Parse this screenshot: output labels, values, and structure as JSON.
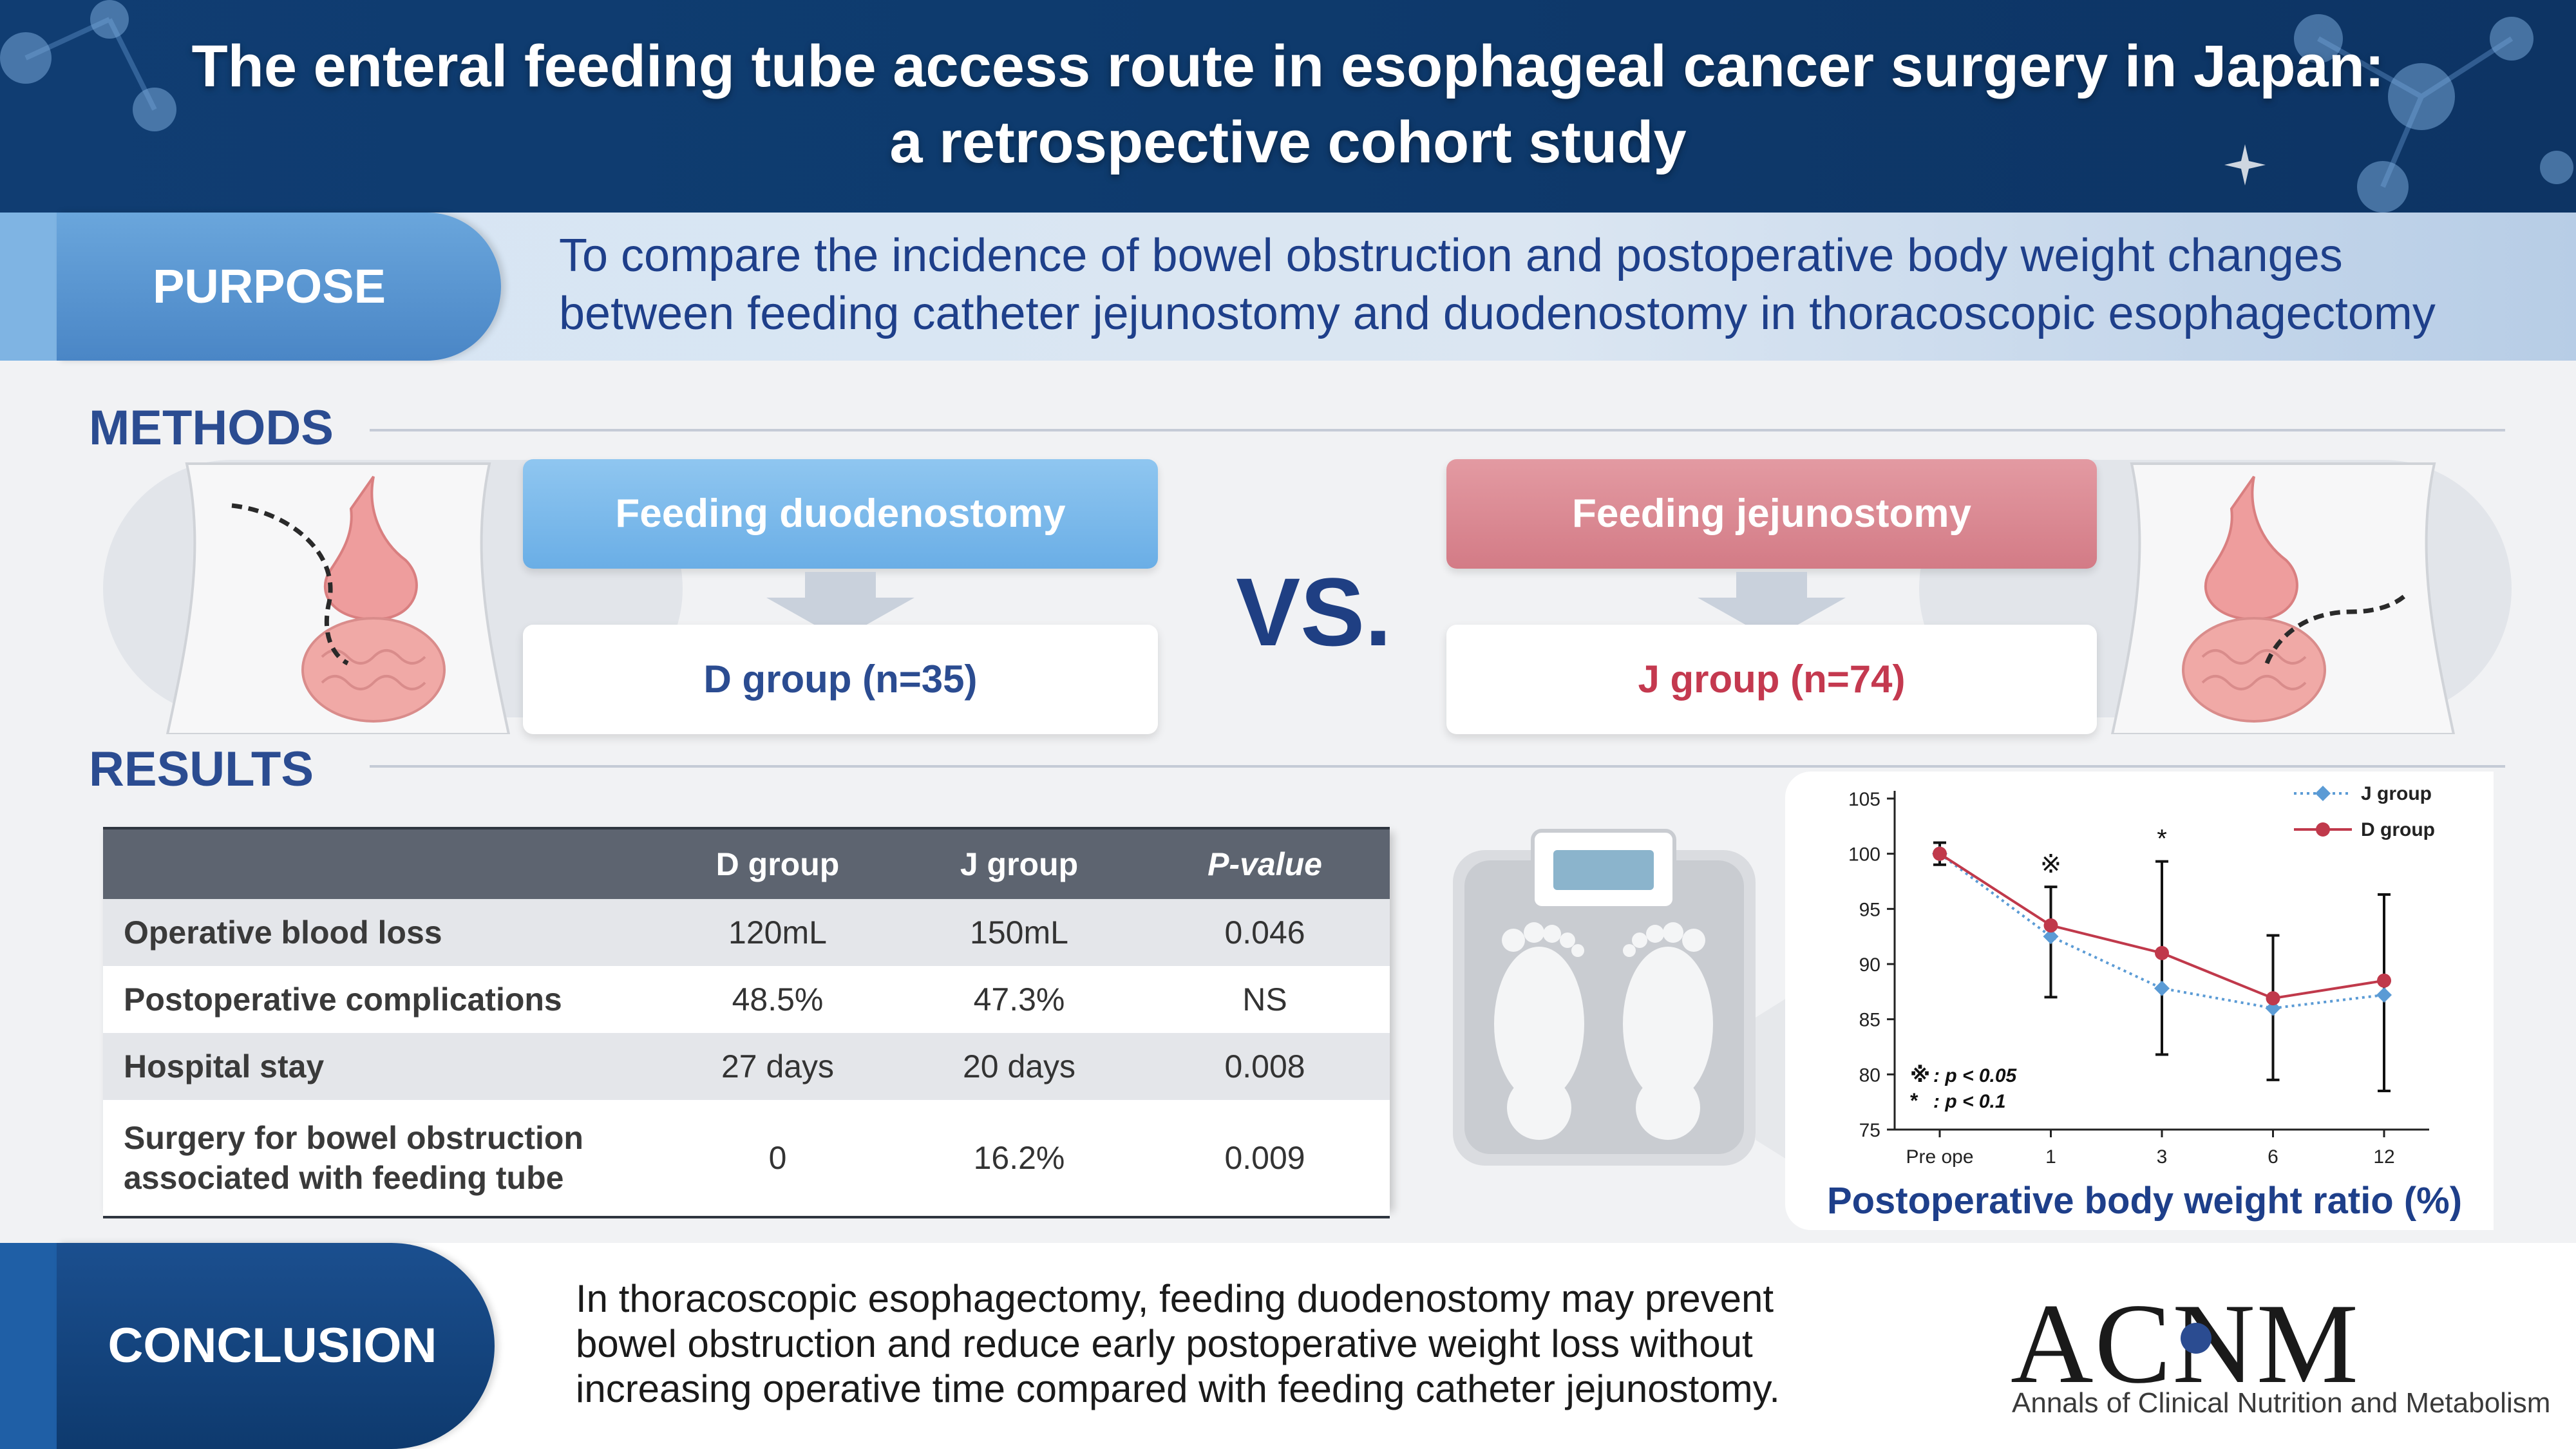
{
  "header": {
    "title_line1": "The enteral feeding tube access route in esophageal cancer surgery in Japan:",
    "title_line2": "a retrospective cohort study"
  },
  "purpose": {
    "label": "PURPOSE",
    "text_line1": "To compare the incidence of bowel obstruction and postoperative body weight changes",
    "text_line2": "between feeding catheter jejunostomy and duodenostomy in thoracoscopic esophagectomy"
  },
  "methods": {
    "heading": "METHODS",
    "left_title": "Feeding duodenostomy",
    "left_group": "D group (n=35)",
    "vs": "VS.",
    "right_title": "Feeding jejunostomy",
    "right_group": "J group (n=74)"
  },
  "results": {
    "heading": "RESULTS",
    "table": {
      "headers": [
        "",
        "D group",
        "J group",
        "P-value"
      ],
      "rows": [
        {
          "label": "Operative blood loss",
          "d": "120mL",
          "j": "150mL",
          "p": "0.046"
        },
        {
          "label": "Postoperative complications",
          "d": "48.5%",
          "j": "47.3%",
          "p": "NS"
        },
        {
          "label": "Hospital stay",
          "d": "27 days",
          "j": "20 days",
          "p": "0.008"
        },
        {
          "label_line1": "Surgery for bowel obstruction",
          "label_line2": "associated with feeding tube",
          "d": "0",
          "j": "16.2%",
          "p": "0.009"
        }
      ]
    }
  },
  "chart_data": {
    "type": "line",
    "title": "Postoperative body weight ratio (%)",
    "x": [
      "Pre ope",
      "1",
      "3",
      "6",
      "12"
    ],
    "ylim": [
      75,
      105
    ],
    "yticks": [
      75,
      80,
      85,
      90,
      95,
      100,
      105
    ],
    "series": [
      {
        "name": "J group",
        "color": "#5b9bd5",
        "style": "dotted",
        "marker": "diamond",
        "values": [
          100,
          92.5,
          87.8,
          86.0,
          87.2
        ]
      },
      {
        "name": "D group",
        "color": "#c0394b",
        "style": "solid",
        "marker": "circle",
        "values": [
          100,
          93.5,
          91.0,
          86.9,
          88.5
        ]
      }
    ],
    "error_bars": [
      {
        "x": "Pre ope",
        "low": 99.0,
        "high": 101.0
      },
      {
        "x": "1",
        "low": 87.0,
        "high": 97.0
      },
      {
        "x": "3",
        "low": 81.8,
        "high": 99.3
      },
      {
        "x": "6",
        "low": 79.5,
        "high": 92.6
      },
      {
        "x": "12",
        "low": 78.5,
        "high": 96.3
      }
    ],
    "significance_marks": [
      {
        "x": "1",
        "symbol": "※"
      },
      {
        "x": "3",
        "symbol": "*"
      }
    ],
    "annotations": [
      {
        "symbol": "※",
        "text": ": p < 0.05"
      },
      {
        "symbol": "*",
        "text": ": p < 0.1"
      }
    ],
    "legend": "top-right",
    "grid": false
  },
  "conclusion": {
    "label": "CONCLUSION",
    "line1": "In thoracoscopic esophagectomy, feeding duodenostomy may prevent",
    "line2": "bowel obstruction and reduce early postoperative weight loss without",
    "line3": "increasing operative time compared with feeding catheter jejunostomy."
  },
  "logo": {
    "main": "ACNM",
    "sub": "Annals of Clinical Nutrition and Metabolism"
  },
  "colors": {
    "navy": "#0e3b6e",
    "accent_blue": "#2b4c91",
    "duodenostomy_blue": "#6aaee6",
    "jejunostomy_red": "#d37b86",
    "j_series": "#5b9bd5",
    "d_series": "#c0394b"
  }
}
